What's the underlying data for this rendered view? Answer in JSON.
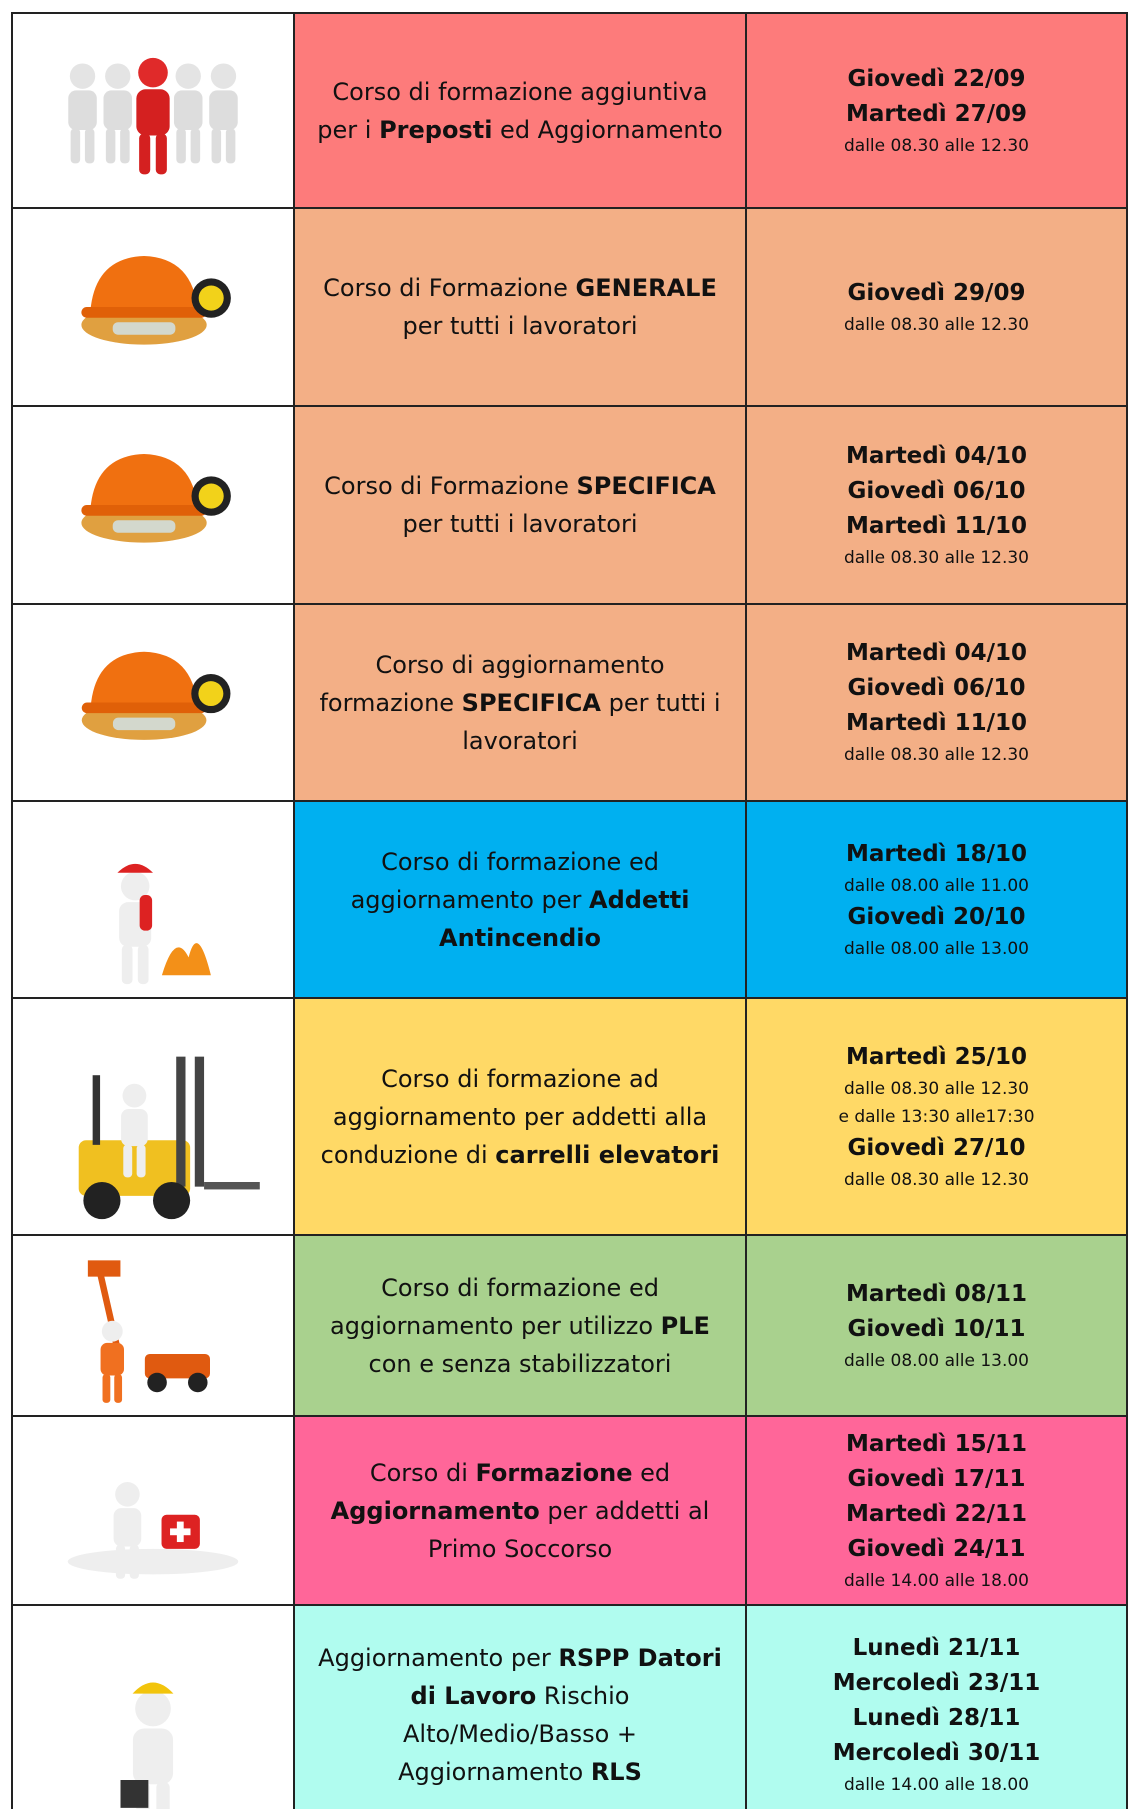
{
  "table": {
    "rows": [
      {
        "color": "#fd7b7b",
        "course": [
          {
            "text": "Corso di formazione aggiuntiva per i ",
            "bold": false
          },
          {
            "text": "Preposti",
            "bold": true
          },
          {
            "text": " ed Aggiornamento",
            "bold": false
          }
        ],
        "schedule": [
          {
            "text": "Giovedì 22/09",
            "bold": true
          },
          {
            "text": "Martedì 27/09",
            "bold": true
          },
          {
            "text": "dalle 08.30 alle 12.30",
            "bold": false
          }
        ]
      },
      {
        "color": "#f3af86",
        "course": [
          {
            "text": "Corso di Formazione ",
            "bold": false
          },
          {
            "text": "GENERALE",
            "bold": true
          },
          {
            "text": " per tutti i lavoratori",
            "bold": false
          }
        ],
        "schedule": [
          {
            "text": "Giovedì 29/09",
            "bold": true
          },
          {
            "text": "dalle 08.30 alle 12.30",
            "bold": false
          }
        ]
      },
      {
        "color": "#f3af86",
        "course": [
          {
            "text": "Corso di Formazione ",
            "bold": false
          },
          {
            "text": "SPECIFICA",
            "bold": true
          },
          {
            "text": " per tutti i lavoratori",
            "bold": false
          }
        ],
        "schedule": [
          {
            "text": "Martedì 04/10",
            "bold": true
          },
          {
            "text": "Giovedì 06/10",
            "bold": true
          },
          {
            "text": "Martedì 11/10",
            "bold": true
          },
          {
            "text": "dalle 08.30 alle 12.30",
            "bold": false
          }
        ]
      },
      {
        "color": "#f3af86",
        "course": [
          {
            "text": "Corso di aggiornamento formazione ",
            "bold": false
          },
          {
            "text": "SPECIFICA",
            "bold": true
          },
          {
            "text": " per tutti i lavoratori",
            "bold": false
          }
        ],
        "schedule": [
          {
            "text": "Martedì 04/10",
            "bold": true
          },
          {
            "text": "Giovedì 06/10",
            "bold": true
          },
          {
            "text": "Martedì 11/10",
            "bold": true
          },
          {
            "text": "dalle 08.30 alle 12.30",
            "bold": false
          }
        ]
      },
      {
        "color": "#00b0f0",
        "course": [
          {
            "text": "Corso di formazione ed aggiornamento per ",
            "bold": false
          },
          {
            "text": "Addetti Antincendio",
            "bold": true
          }
        ],
        "schedule": [
          {
            "text": "Martedì 18/10",
            "bold": true
          },
          {
            "text": "dalle 08.00 alle 11.00",
            "bold": false
          },
          {
            "text": "Giovedì 20/10",
            "bold": true
          },
          {
            "text": "dalle 08.00 alle 13.00",
            "bold": false
          }
        ]
      },
      {
        "color": "#ffd966",
        "course": [
          {
            "text": "Corso di formazione ad aggiornamento per addetti alla conduzione di ",
            "bold": false
          },
          {
            "text": "carrelli elevatori",
            "bold": true
          }
        ],
        "schedule": [
          {
            "text": "Martedì 25/10",
            "bold": true
          },
          {
            "text": "dalle 08.30 alle 12.30",
            "bold": false
          },
          {
            "text": "e dalle 13:30 alle17:30",
            "bold": false
          },
          {
            "text": "Giovedì 27/10",
            "bold": true
          },
          {
            "text": "dalle 08.30 alle 12.30",
            "bold": false
          }
        ]
      },
      {
        "color": "#a9d18e",
        "course": [
          {
            "text": "Corso di formazione ed aggiornamento per utilizzo ",
            "bold": false
          },
          {
            "text": "PLE",
            "bold": true
          },
          {
            "text": " con e senza stabilizzatori",
            "bold": false
          }
        ],
        "schedule": [
          {
            "text": "Martedì 08/11",
            "bold": true
          },
          {
            "text": "Giovedì 10/11",
            "bold": true
          },
          {
            "text": "dalle 08.00 alle 13.00",
            "bold": false
          }
        ]
      },
      {
        "color": "#ff6699",
        "course": [
          {
            "text": "Corso di ",
            "bold": false
          },
          {
            "text": "Formazione",
            "bold": true
          },
          {
            "text": " ed ",
            "bold": false
          },
          {
            "text": "Aggiornamento",
            "bold": true
          },
          {
            "text": " per addetti al Primo Soccorso",
            "bold": false
          }
        ],
        "schedule": [
          {
            "text": "Martedì 15/11",
            "bold": true
          },
          {
            "text": "Giovedì 17/11",
            "bold": true
          },
          {
            "text": "Martedì 22/11",
            "bold": true
          },
          {
            "text": "Giovedì 24/11",
            "bold": true
          },
          {
            "text": "dalle 14.00 alle 18.00",
            "bold": false
          }
        ]
      },
      {
        "color": "#b0fcef",
        "course": [
          {
            "text": "Aggiornamento per ",
            "bold": false
          },
          {
            "text": "RSPP Datori di Lavoro",
            "bold": true
          },
          {
            "text": " Rischio Alto/Medio/Basso + Aggiornamento ",
            "bold": false
          },
          {
            "text": "RLS",
            "bold": true
          }
        ],
        "schedule": [
          {
            "text": "Lunedì 21/11",
            "bold": true
          },
          {
            "text": "Mercoledì 23/11",
            "bold": true
          },
          {
            "text": "Lunedì 28/11",
            "bold": true
          },
          {
            "text": "Mercoledì 30/11",
            "bold": true
          },
          {
            "text": "dalle 14.00 alle 18.00",
            "bold": false
          }
        ]
      }
    ]
  }
}
